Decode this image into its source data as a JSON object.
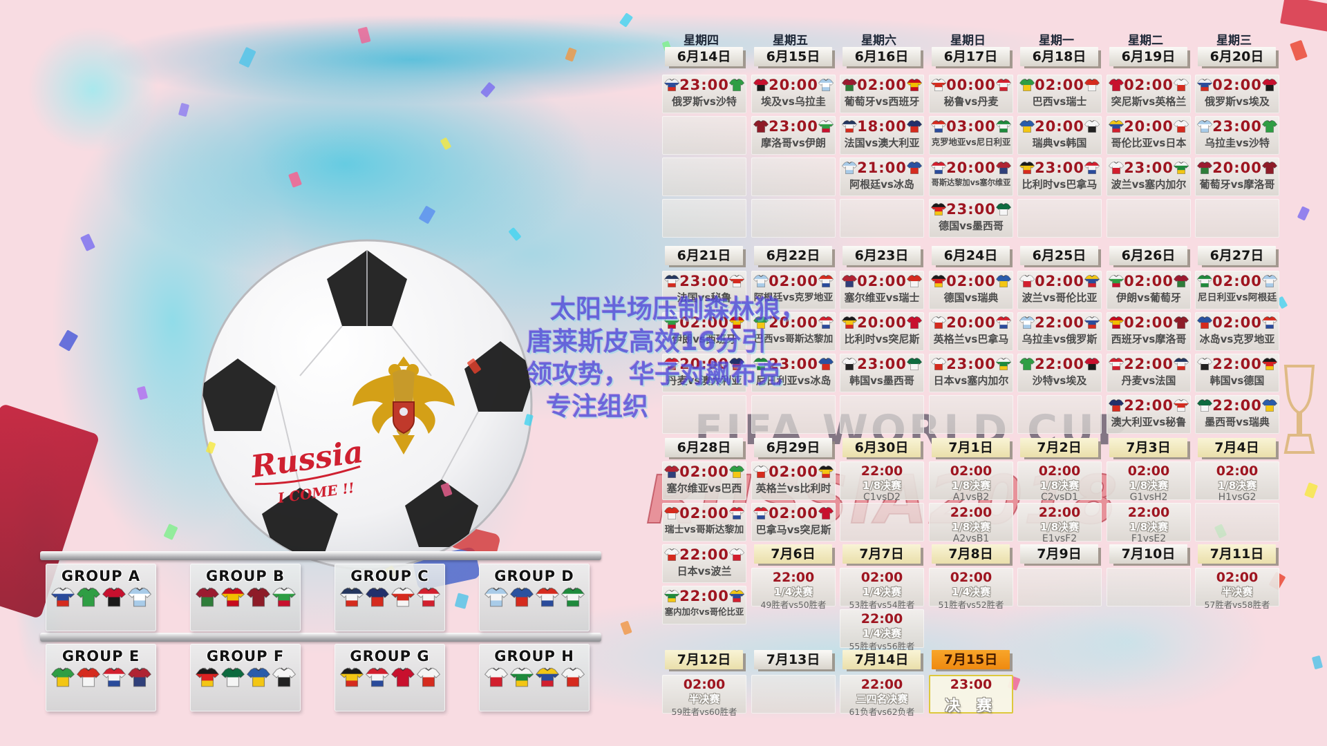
{
  "overlay": {
    "lines": [
      "太阳半场压制森林狼，",
      "唐莱斯皮高效16分引",
      "领攻势，华子对飙布克",
      "专注组织"
    ]
  },
  "watermark": {
    "fifa": "FIFA WORLD CUP",
    "russia": "RUSSIA2018"
  },
  "ball": {
    "script": "Russia",
    "script2": "I COME !!"
  },
  "teams": {
    "俄罗斯": [
      "#eef0f2",
      "#2a4b9b",
      "#d52b1e"
    ],
    "沙特": [
      "#2f9e44"
    ],
    "埃及": [
      "#c8102e",
      "#1a1a1a"
    ],
    "乌拉圭": [
      "#a8cbe8",
      "#ffffff",
      "#a8cbe8"
    ],
    "葡萄牙": [
      "#9b1b30",
      "#2e7d3a"
    ],
    "西班牙": [
      "#c60b1e",
      "#f1bf00",
      "#c60b1e"
    ],
    "摩洛哥": [
      "#8e1c28"
    ],
    "伊朗": [
      "#f5f5f5",
      "#2f9e44",
      "#c8102e"
    ],
    "法国": [
      "#24365e",
      "#f5f5f5",
      "#d52b1e"
    ],
    "澳大利亚": [
      "#22306b",
      "#d52b1e"
    ],
    "秘鲁": [
      "#f5f5f5",
      "#d52b1e",
      "#f5f5f5"
    ],
    "丹麦": [
      "#d21f2e",
      "#f5f5f5",
      "#d21f2e"
    ],
    "克罗地亚": [
      "#d52b1e",
      "#f5f5f5",
      "#2a4b9b"
    ],
    "尼日利亚": [
      "#1e8a3c",
      "#f5f5f5",
      "#1e8a3c"
    ],
    "哥斯达黎加": [
      "#d21f2e",
      "#f5f5f5",
      "#2a4b9b"
    ],
    "塞尔维亚": [
      "#b02433",
      "#30407a"
    ],
    "德国": [
      "#1a1a1a",
      "#dd2222",
      "#f3c614"
    ],
    "墨西哥": [
      "#0d6b3f",
      "#f5f5f5"
    ],
    "瑞典": [
      "#2a5caa",
      "#f3c614"
    ],
    "韩国": [
      "#f5f5f5",
      "#222222"
    ],
    "巴西": [
      "#2f9e44",
      "#f3c614"
    ],
    "瑞士": [
      "#d52b1e",
      "#f5f5f5"
    ],
    "比利时": [
      "#1a1a1a",
      "#f3c614",
      "#d52b1e"
    ],
    "巴拿马": [
      "#d21f2e",
      "#f5f5f5",
      "#2a4b9b"
    ],
    "突尼斯": [
      "#c8102e"
    ],
    "英格兰": [
      "#f5f5f5",
      "#d52b1e"
    ],
    "波兰": [
      "#f5f5f5",
      "#d21f2e"
    ],
    "塞内加尔": [
      "#f5f5f5",
      "#1e8a3c",
      "#f3c614"
    ],
    "哥伦比亚": [
      "#f3c614",
      "#2a4b9b",
      "#d21f2e"
    ],
    "日本": [
      "#f5f5f5",
      "#d52b1e"
    ],
    "阿根廷": [
      "#a8cbe8",
      "#f5f5f5",
      "#a8cbe8"
    ],
    "冰岛": [
      "#2a52a0",
      "#d52b1e"
    ]
  },
  "groups": [
    {
      "name": "GROUP A",
      "teams": [
        "俄罗斯",
        "沙特",
        "埃及",
        "乌拉圭"
      ]
    },
    {
      "name": "GROUP B",
      "teams": [
        "葡萄牙",
        "西班牙",
        "摩洛哥",
        "伊朗"
      ]
    },
    {
      "name": "GROUP C",
      "teams": [
        "法国",
        "澳大利亚",
        "秘鲁",
        "丹麦"
      ]
    },
    {
      "name": "GROUP D",
      "teams": [
        "阿根廷",
        "冰岛",
        "克罗地亚",
        "尼日利亚"
      ]
    },
    {
      "name": "GROUP E",
      "teams": [
        "巴西",
        "瑞士",
        "哥斯达黎加",
        "塞尔维亚"
      ]
    },
    {
      "name": "GROUP F",
      "teams": [
        "德国",
        "墨西哥",
        "瑞典",
        "韩国"
      ]
    },
    {
      "name": "GROUP G",
      "teams": [
        "比利时",
        "巴拿马",
        "突尼斯",
        "英格兰"
      ]
    },
    {
      "name": "GROUP H",
      "teams": [
        "波兰",
        "塞内加尔",
        "哥伦比亚",
        "日本"
      ]
    }
  ],
  "calendar": {
    "weekdays": [
      "星期四",
      "星期五",
      "星期六",
      "星期日",
      "星期一",
      "星期二",
      "星期三"
    ],
    "weeks": [
      {
        "dates": [
          {
            "label": "6月14日",
            "style": "white"
          },
          {
            "label": "6月15日",
            "style": "white"
          },
          {
            "label": "6月16日",
            "style": "white"
          },
          {
            "label": "6月17日",
            "style": "white"
          },
          {
            "label": "6月18日",
            "style": "white"
          },
          {
            "label": "6月19日",
            "style": "white"
          },
          {
            "label": "6月20日",
            "style": "white"
          }
        ],
        "rows": [
          [
            {
              "t": "m",
              "time": "23:00",
              "h": "俄罗斯",
              "a": "沙特"
            },
            {
              "t": "m",
              "time": "20:00",
              "h": "埃及",
              "a": "乌拉圭"
            },
            {
              "t": "m",
              "time": "02:00",
              "h": "葡萄牙",
              "a": "西班牙"
            },
            {
              "t": "m",
              "time": "00:00",
              "h": "秘鲁",
              "a": "丹麦"
            },
            {
              "t": "m",
              "time": "02:00",
              "h": "巴西",
              "a": "瑞士"
            },
            {
              "t": "m",
              "time": "02:00",
              "h": "突尼斯",
              "a": "英格兰"
            },
            {
              "t": "m",
              "time": "02:00",
              "h": "俄罗斯",
              "a": "埃及"
            }
          ],
          [
            {
              "t": "e"
            },
            {
              "t": "m",
              "time": "23:00",
              "h": "摩洛哥",
              "a": "伊朗"
            },
            {
              "t": "m",
              "time": "18:00",
              "h": "法国",
              "a": "澳大利亚"
            },
            {
              "t": "m",
              "time": "03:00",
              "h": "克罗地亚",
              "a": "尼日利亚"
            },
            {
              "t": "m",
              "time": "20:00",
              "h": "瑞典",
              "a": "韩国"
            },
            {
              "t": "m",
              "time": "20:00",
              "h": "哥伦比亚",
              "a": "日本"
            },
            {
              "t": "m",
              "time": "23:00",
              "h": "乌拉圭",
              "a": "沙特"
            }
          ],
          [
            {
              "t": "e"
            },
            {
              "t": "e"
            },
            {
              "t": "m",
              "time": "21:00",
              "h": "阿根廷",
              "a": "冰岛"
            },
            {
              "t": "m",
              "time": "20:00",
              "h": "哥斯达黎加",
              "a": "塞尔维亚"
            },
            {
              "t": "m",
              "time": "23:00",
              "h": "比利时",
              "a": "巴拿马"
            },
            {
              "t": "m",
              "time": "23:00",
              "h": "波兰",
              "a": "塞内加尔"
            },
            {
              "t": "m",
              "time": "20:00",
              "h": "葡萄牙",
              "a": "摩洛哥"
            }
          ],
          [
            {
              "t": "e"
            },
            {
              "t": "e"
            },
            {
              "t": "e"
            },
            {
              "t": "m",
              "time": "23:00",
              "h": "德国",
              "a": "墨西哥"
            },
            {
              "t": "e"
            },
            {
              "t": "e"
            },
            {
              "t": "e"
            }
          ]
        ]
      },
      {
        "dates": [
          {
            "label": "6月21日",
            "style": "white"
          },
          {
            "label": "6月22日",
            "style": "white"
          },
          {
            "label": "6月23日",
            "style": "white"
          },
          {
            "label": "6月24日",
            "style": "white"
          },
          {
            "label": "6月25日",
            "style": "white"
          },
          {
            "label": "6月26日",
            "style": "white"
          },
          {
            "label": "6月27日",
            "style": "white"
          }
        ],
        "rows": [
          [
            {
              "t": "m",
              "time": "23:00",
              "h": "法国",
              "a": "秘鲁"
            },
            {
              "t": "m",
              "time": "02:00",
              "h": "阿根廷",
              "a": "克罗地亚"
            },
            {
              "t": "m",
              "time": "02:00",
              "h": "塞尔维亚",
              "a": "瑞士"
            },
            {
              "t": "m",
              "time": "02:00",
              "h": "德国",
              "a": "瑞典"
            },
            {
              "t": "m",
              "time": "02:00",
              "h": "波兰",
              "a": "哥伦比亚"
            },
            {
              "t": "m",
              "time": "02:00",
              "h": "伊朗",
              "a": "葡萄牙"
            },
            {
              "t": "m",
              "time": "02:00",
              "h": "尼日利亚",
              "a": "阿根廷"
            }
          ],
          [
            {
              "t": "m",
              "time": "02:00",
              "h": "伊朗",
              "a": "西班牙"
            },
            {
              "t": "m",
              "time": "20:00",
              "h": "巴西",
              "a": "哥斯达黎加"
            },
            {
              "t": "m",
              "time": "20:00",
              "h": "比利时",
              "a": "突尼斯"
            },
            {
              "t": "m",
              "time": "20:00",
              "h": "英格兰",
              "a": "巴拿马"
            },
            {
              "t": "m",
              "time": "22:00",
              "h": "乌拉圭",
              "a": "俄罗斯"
            },
            {
              "t": "m",
              "time": "02:00",
              "h": "西班牙",
              "a": "摩洛哥"
            },
            {
              "t": "m",
              "time": "02:00",
              "h": "冰岛",
              "a": "克罗地亚"
            }
          ],
          [
            {
              "t": "m",
              "time": "20:00",
              "h": "丹麦",
              "a": "澳大利亚"
            },
            {
              "t": "m",
              "time": "23:00",
              "h": "尼日利亚",
              "a": "冰岛"
            },
            {
              "t": "m",
              "time": "23:00",
              "h": "韩国",
              "a": "墨西哥"
            },
            {
              "t": "m",
              "time": "23:00",
              "h": "日本",
              "a": "塞内加尔"
            },
            {
              "t": "m",
              "time": "22:00",
              "h": "沙特",
              "a": "埃及"
            },
            {
              "t": "m",
              "time": "22:00",
              "h": "丹麦",
              "a": "法国"
            },
            {
              "t": "m",
              "time": "22:00",
              "h": "韩国",
              "a": "德国"
            }
          ],
          [
            {
              "t": "e"
            },
            {
              "t": "e"
            },
            {
              "t": "e"
            },
            {
              "t": "e"
            },
            {
              "t": "e"
            },
            {
              "t": "m",
              "time": "22:00",
              "h": "澳大利亚",
              "a": "秘鲁"
            },
            {
              "t": "m",
              "time": "22:00",
              "h": "墨西哥",
              "a": "瑞典"
            }
          ]
        ]
      },
      {
        "dates": [
          {
            "label": "6月28日",
            "style": "white"
          },
          {
            "label": "6月29日",
            "style": "white"
          },
          {
            "label": "6月30日",
            "style": "cream"
          },
          {
            "label": "7月1日",
            "style": "cream"
          },
          {
            "label": "7月2日",
            "style": "cream"
          },
          {
            "label": "7月3日",
            "style": "cream"
          },
          {
            "label": "7月4日",
            "style": "cream"
          }
        ],
        "rows": [
          [
            {
              "t": "m",
              "time": "02:00",
              "h": "塞尔维亚",
              "a": "巴西"
            },
            {
              "t": "m",
              "time": "02:00",
              "h": "英格兰",
              "a": "比利时"
            },
            {
              "t": "k",
              "time": "22:00",
              "stage": "1/8决赛",
              "who": "C1vsD2"
            },
            {
              "t": "k",
              "time": "02:00",
              "stage": "1/8决赛",
              "who": "A1vsB2"
            },
            {
              "t": "k",
              "time": "02:00",
              "stage": "1/8决赛",
              "who": "C2vsD1"
            },
            {
              "t": "k",
              "time": "02:00",
              "stage": "1/8决赛",
              "who": "G1vsH2"
            },
            {
              "t": "k",
              "time": "02:00",
              "stage": "1/8决赛",
              "who": "H1vsG2"
            }
          ],
          [
            {
              "t": "m",
              "time": "02:00",
              "h": "瑞士",
              "a": "哥斯达黎加"
            },
            {
              "t": "m",
              "time": "02:00",
              "h": "巴拿马",
              "a": "突尼斯"
            },
            {
              "t": "e"
            },
            {
              "t": "k",
              "time": "22:00",
              "stage": "1/8决赛",
              "who": "A2vsB1"
            },
            {
              "t": "k",
              "time": "22:00",
              "stage": "1/8决赛",
              "who": "E1vsF2"
            },
            {
              "t": "k",
              "time": "22:00",
              "stage": "1/8决赛",
              "who": "F1vsE2"
            },
            {
              "t": "e"
            }
          ],
          [
            {
              "t": "m",
              "time": "22:00",
              "h": "日本",
              "a": "波兰"
            },
            null,
            null,
            null,
            null,
            null,
            null
          ],
          [
            {
              "t": "m",
              "time": "22:00",
              "h": "塞内加尔",
              "a": "哥伦比亚"
            },
            null,
            null,
            null,
            null,
            null,
            null
          ]
        ]
      },
      {
        "dates": [
          null,
          {
            "label": "7月6日",
            "style": "cream"
          },
          {
            "label": "7月7日",
            "style": "cream"
          },
          {
            "label": "7月8日",
            "style": "cream"
          },
          {
            "label": "7月9日",
            "style": "white"
          },
          {
            "label": "7月10日",
            "style": "white"
          },
          {
            "label": "7月11日",
            "style": "cream"
          }
        ],
        "rows": [
          [
            null,
            {
              "t": "k",
              "time": "22:00",
              "stage": "1/4决赛",
              "who": "49胜者vs50胜者"
            },
            {
              "t": "k",
              "time": "02:00",
              "stage": "1/4决赛",
              "who": "53胜者vs54胜者"
            },
            {
              "t": "k",
              "time": "02:00",
              "stage": "1/4决赛",
              "who": "51胜者vs52胜者"
            },
            {
              "t": "e"
            },
            {
              "t": "e"
            },
            {
              "t": "k",
              "time": "02:00",
              "stage": "半决赛",
              "who": "57胜者vs58胜者"
            }
          ],
          [
            null,
            null,
            {
              "t": "k",
              "time": "22:00",
              "stage": "1/4决赛",
              "who": "55胜者vs56胜者"
            },
            null,
            null,
            null,
            null
          ]
        ]
      },
      {
        "dates": [
          {
            "label": "7月12日",
            "style": "cream"
          },
          {
            "label": "7月13日",
            "style": "white"
          },
          {
            "label": "7月14日",
            "style": "cream"
          },
          {
            "label": "7月15日",
            "style": "orange"
          },
          null,
          null,
          null
        ],
        "rows": [
          [
            {
              "t": "k",
              "time": "02:00",
              "stage": "半决赛",
              "who": "59胜者vs60胜者"
            },
            {
              "t": "e"
            },
            {
              "t": "k",
              "time": "22:00",
              "stage": "三四名决赛",
              "who": "61负者vs62负者"
            },
            {
              "t": "f",
              "time": "23:00",
              "stage": "决 赛"
            },
            null,
            null,
            null
          ]
        ]
      }
    ]
  }
}
